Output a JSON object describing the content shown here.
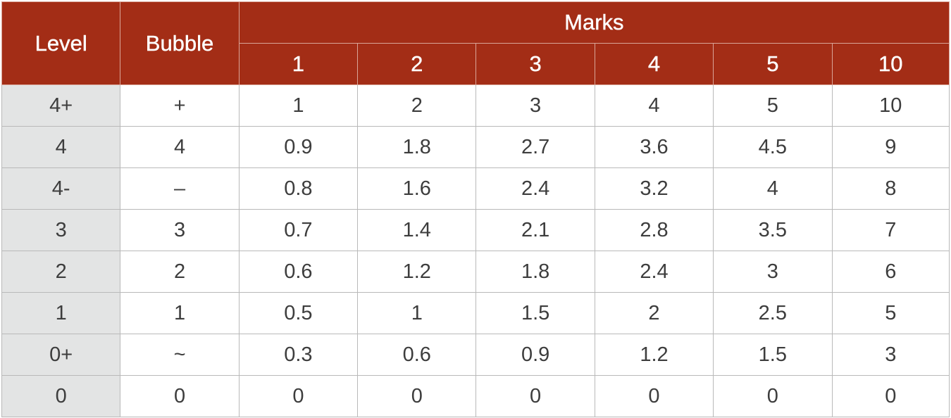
{
  "table": {
    "headers": {
      "level": "Level",
      "bubble": "Bubble",
      "marks": "Marks",
      "mark_columns": [
        "1",
        "2",
        "3",
        "4",
        "5",
        "10"
      ]
    },
    "rows": [
      {
        "level": "4+",
        "bubble": "+",
        "marks": [
          "1",
          "2",
          "3",
          "4",
          "5",
          "10"
        ]
      },
      {
        "level": "4",
        "bubble": "4",
        "marks": [
          "0.9",
          "1.8",
          "2.7",
          "3.6",
          "4.5",
          "9"
        ]
      },
      {
        "level": "4-",
        "bubble": "–",
        "marks": [
          "0.8",
          "1.6",
          "2.4",
          "3.2",
          "4",
          "8"
        ]
      },
      {
        "level": "3",
        "bubble": "3",
        "marks": [
          "0.7",
          "1.4",
          "2.1",
          "2.8",
          "3.5",
          "7"
        ]
      },
      {
        "level": "2",
        "bubble": "2",
        "marks": [
          "0.6",
          "1.2",
          "1.8",
          "2.4",
          "3",
          "6"
        ]
      },
      {
        "level": "1",
        "bubble": "1",
        "marks": [
          "0.5",
          "1",
          "1.5",
          "2",
          "2.5",
          "5"
        ]
      },
      {
        "level": "0+",
        "bubble": "~",
        "marks": [
          "0.3",
          "0.6",
          "0.9",
          "1.2",
          "1.5",
          "3"
        ]
      },
      {
        "level": "0",
        "bubble": "0",
        "marks": [
          "0",
          "0",
          "0",
          "0",
          "0",
          "0"
        ]
      }
    ]
  },
  "colors": {
    "header_background": "#a32d16",
    "header_text": "#ffffff",
    "level_column_background": "#e3e4e4",
    "cell_text": "#3d3d3d",
    "grid_line": "#b9b9b9"
  }
}
